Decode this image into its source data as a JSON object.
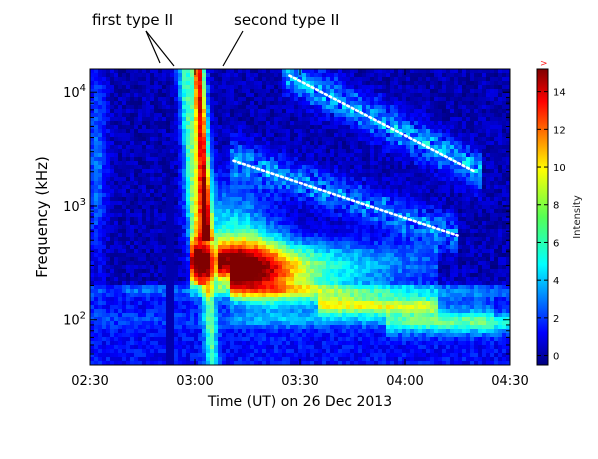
{
  "chart_data": {
    "type": "heatmap",
    "title": "",
    "xlabel": "Time (UT) on 26 Dec 2013",
    "ylabel": "Frequency (kHz)",
    "x_ticks": [
      "02:30",
      "03:00",
      "03:30",
      "04:00",
      "04:30"
    ],
    "x_range": [
      "02:30",
      "04:30"
    ],
    "y_scale": "log",
    "y_range_khz": [
      40,
      16000
    ],
    "y_ticks": [
      {
        "base": "10",
        "exp": "4",
        "value": 10000
      },
      {
        "base": "10",
        "exp": "3",
        "value": 1000
      },
      {
        "base": "10",
        "exp": "2",
        "value": 100
      }
    ],
    "colorbar": {
      "label": "Intensity",
      "range": [
        -0.5,
        15.2
      ],
      "ticks": [
        "14",
        "12",
        "10",
        "8",
        "6",
        "4",
        "2",
        "0"
      ],
      "overflow_marker": ">",
      "colormap": "jet"
    },
    "annotations": [
      {
        "text": "first type II",
        "points_to": [
          "02:50",
          "02:52"
        ]
      },
      {
        "text": "second type II",
        "points_to": [
          "03:00"
        ]
      }
    ],
    "features": [
      {
        "name": "type III burst",
        "time": "03:01",
        "freq_khz": [
          90,
          16000
        ]
      },
      {
        "name": "type III burst",
        "time": "02:57",
        "freq_khz": [
          150,
          14000
        ]
      },
      {
        "name": "type II lane upper",
        "from": [
          "03:27",
          14000
        ],
        "to": [
          "04:20",
          2000
        ]
      },
      {
        "name": "type II lane lower",
        "from": [
          "03:11",
          2500
        ],
        "to": [
          "04:15",
          550
        ]
      }
    ],
    "grid": false,
    "legend": "colorbar-right"
  }
}
